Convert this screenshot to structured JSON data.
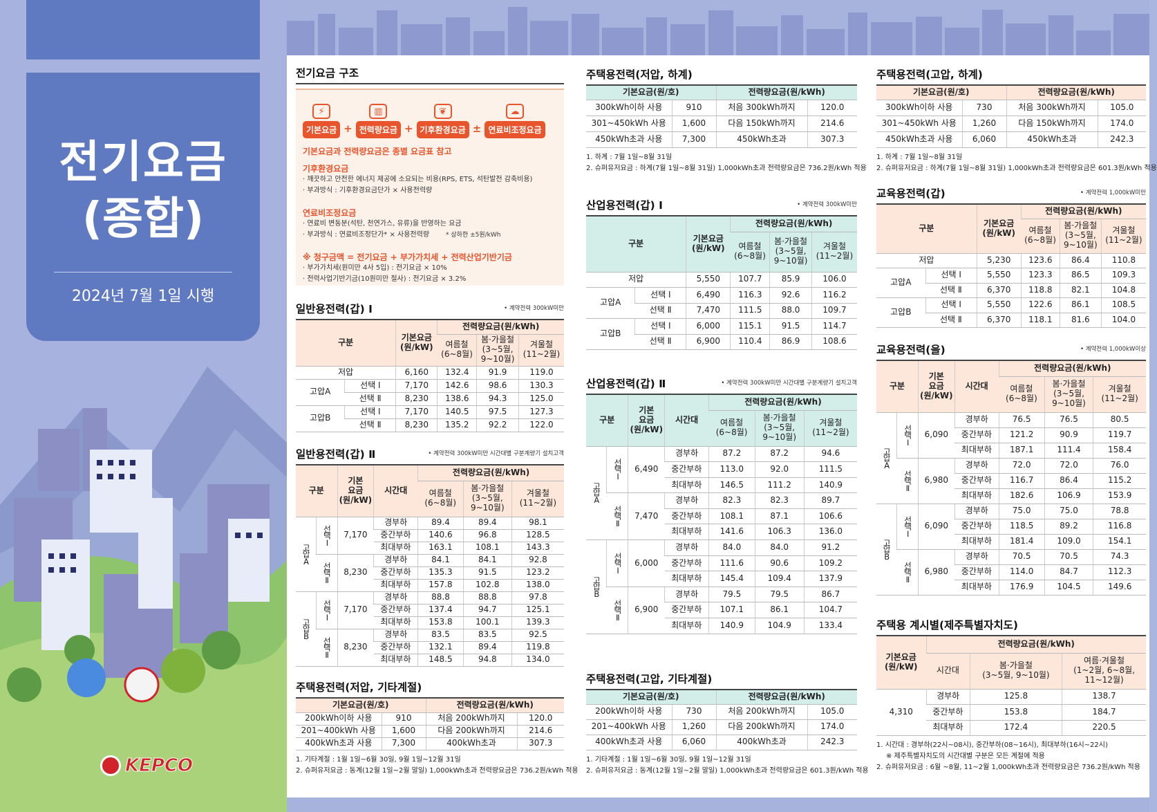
{
  "cover": {
    "title1": "전기요금",
    "title2": "(종합)",
    "date": "2024년 7월 1일 시행",
    "logo": "KEPCO"
  },
  "structure": {
    "title": "전기요금 구조",
    "chips": [
      "기본요금",
      "전력량요금",
      "기후환경요금",
      "연료비조정요금"
    ],
    "ops": [
      "+",
      "+",
      "±"
    ],
    "l1": "기본요금과 전력량요금은 종별 요금표 참고",
    "h2": "기후환경요금",
    "l2": "· 깨끗하고 안전한 에너지 제공에 소요되는 비용(RPS, ETS, 석탄발전 감축비용)",
    "l3": "· 부과방식 : 기후환경요금단가 × 사용전력량",
    "h3": "연료비조정요금",
    "l4": "· 연료비 변동분(석탄, 천연가스, 유류)을 반영하는 요금",
    "l5": "· 부과방식 : 연료비조정단가* × 사용전력량",
    "l5b": "* 상하한 ±5원/kWh",
    "h4": "※ 청구금액 = 전기요금 + 부가가치세 + 전력산업기반기금",
    "l6": "· 부가가치세(원미만 4사 5입) : 전기요금 × 10%",
    "l7": "· 전력사업기반기금(10원미만 절사) : 전기요금 × 3.2%"
  },
  "gen1": {
    "title": "일반용전력(갑) Ⅰ",
    "note": "• 계약전력 300kW미만",
    "h_div": "구분",
    "h_base": "기본요금\n(원/kW)",
    "h_energy": "전력량요금(원/kWh)",
    "h_s": "여름철\n(6~8월)",
    "h_sf": "봄·가을철\n(3~5월,\n9~10월)",
    "h_w": "겨울철\n(11~2월)",
    "g_low": "저압",
    "g_a": "고압A",
    "g_b": "고압B",
    "sel1": "선택 Ⅰ",
    "sel2": "선택 Ⅱ",
    "rows": [
      [
        "6,160",
        "132.4",
        "91.9",
        "119.0"
      ],
      [
        "7,170",
        "142.6",
        "98.6",
        "130.3"
      ],
      [
        "8,230",
        "138.6",
        "94.3",
        "125.0"
      ],
      [
        "7,170",
        "140.5",
        "97.5",
        "127.3"
      ],
      [
        "8,230",
        "135.2",
        "92.2",
        "122.0"
      ]
    ]
  },
  "gen2": {
    "title": "일반용전력(갑) Ⅱ",
    "note": "• 계약전력 300kW미만 시간대별 구분계량기 설치고객",
    "h_div": "구분",
    "h_base": "기본\n요금\n(원/kW)",
    "h_time": "시간대",
    "h_energy": "전력량요금(원/kWh)",
    "h_s": "여름철\n(6~8월)",
    "h_sf": "봄·가을철\n(3~5월,\n9~10월)",
    "h_w": "겨울철\n(11~2월)",
    "ga": "고압A",
    "gb": "고압B",
    "s1": "선택Ⅰ",
    "s2": "선택Ⅱ",
    "t": [
      "경부하",
      "중간부하",
      "최대부하"
    ],
    "bases": [
      "7,170",
      "8,230",
      "7,170",
      "8,230"
    ],
    "vals": [
      [
        "89.4",
        "89.4",
        "98.1"
      ],
      [
        "140.6",
        "96.8",
        "128.5"
      ],
      [
        "163.1",
        "108.1",
        "143.3"
      ],
      [
        "84.1",
        "84.1",
        "92.8"
      ],
      [
        "135.3",
        "91.5",
        "123.2"
      ],
      [
        "157.8",
        "102.8",
        "138.0"
      ],
      [
        "88.8",
        "88.8",
        "97.8"
      ],
      [
        "137.4",
        "94.7",
        "125.1"
      ],
      [
        "153.8",
        "100.1",
        "139.3"
      ],
      [
        "83.5",
        "83.5",
        "92.5"
      ],
      [
        "132.1",
        "89.4",
        "119.8"
      ],
      [
        "148.5",
        "94.8",
        "134.0"
      ]
    ]
  },
  "resLowOther": {
    "title": "주택용전력(저압, 기타계절)",
    "h_base": "기본요금(원/호)",
    "h_energy": "전력량요금(원/kWh)",
    "rows": [
      [
        "200kWh이하 사용",
        "910",
        "처음 200kWh까지",
        "120.0"
      ],
      [
        "201~400kWh 사용",
        "1,600",
        "다음 200kWh까지",
        "214.6"
      ],
      [
        "400kWh초과 사용",
        "7,300",
        "400kWh초과",
        "307.3"
      ]
    ],
    "n1": "1. 기타계절 : 1월 1일~6월 30일, 9월 1일~12월 31일",
    "n2": "2. 슈퍼유저요금 : 동계(12월 1일~2월 말일) 1,000kWh초과 전력량요금은 736.2원/kWh 적용"
  },
  "resLowSummer": {
    "title": "주택용전력(저압, 하계)",
    "h_base": "기본요금(원/호)",
    "h_energy": "전력량요금(원/kWh)",
    "rows": [
      [
        "300kWh이하 사용",
        "910",
        "처음 300kWh까지",
        "120.0"
      ],
      [
        "301~450kWh 사용",
        "1,600",
        "다음 150kWh까지",
        "214.6"
      ],
      [
        "450kWh초과 사용",
        "7,300",
        "450kWh초과",
        "307.3"
      ]
    ],
    "n1": "1. 하계 : 7월 1일~8월 31일",
    "n2": "2. 슈퍼유저요금 : 하계(7월 1일~8월 31일) 1,000kWh초과 전력량요금은 736.2원/kWh 적용"
  },
  "ind1": {
    "title": "산업용전력(갑) Ⅰ",
    "note": "• 계약전력 300kW미만",
    "h_div": "구분",
    "h_base": "기본요금\n(원/kW)",
    "h_energy": "전력량요금(원/kWh)",
    "h_s": "여름철\n(6~8월)",
    "h_sf": "봄·가을철\n(3~5월,\n9~10월)",
    "h_w": "겨울철\n(11~2월)",
    "g_low": "저압",
    "g_a": "고압A",
    "g_b": "고압B",
    "sel1": "선택 Ⅰ",
    "sel2": "선택 Ⅱ",
    "rows": [
      [
        "5,550",
        "107.7",
        "85.9",
        "106.0"
      ],
      [
        "6,490",
        "116.3",
        "92.6",
        "116.2"
      ],
      [
        "7,470",
        "111.5",
        "88.0",
        "109.7"
      ],
      [
        "6,000",
        "115.1",
        "91.5",
        "114.7"
      ],
      [
        "6,900",
        "110.4",
        "86.9",
        "108.6"
      ]
    ]
  },
  "ind2": {
    "title": "산업용전력(갑) Ⅱ",
    "note": "• 계약전력 300kW미만 시간대별 구분계량기 설치고객",
    "h_div": "구분",
    "h_base": "기본\n요금\n(원/kW)",
    "h_time": "시간대",
    "h_energy": "전력량요금(원/kWh)",
    "h_s": "여름철\n(6~8월)",
    "h_sf": "봄·가을철\n(3~5월,\n9~10월)",
    "h_w": "겨울철\n(11~2월)",
    "ga": "고압A",
    "gb": "고압B",
    "s1": "선택Ⅰ",
    "s2": "선택Ⅱ",
    "t": [
      "경부하",
      "중간부하",
      "최대부하"
    ],
    "bases": [
      "6,490",
      "7,470",
      "6,000",
      "6,900"
    ],
    "vals": [
      [
        "87.2",
        "87.2",
        "94.6"
      ],
      [
        "113.0",
        "92.0",
        "111.5"
      ],
      [
        "146.5",
        "111.2",
        "140.9"
      ],
      [
        "82.3",
        "82.3",
        "89.7"
      ],
      [
        "108.1",
        "87.1",
        "106.6"
      ],
      [
        "141.6",
        "106.3",
        "136.0"
      ],
      [
        "84.0",
        "84.0",
        "91.2"
      ],
      [
        "111.6",
        "90.6",
        "109.2"
      ],
      [
        "145.4",
        "109.4",
        "137.9"
      ],
      [
        "79.5",
        "79.5",
        "86.7"
      ],
      [
        "107.1",
        "86.1",
        "104.7"
      ],
      [
        "140.9",
        "104.9",
        "133.4"
      ]
    ]
  },
  "resHighOther": {
    "title": "주택용전력(고압, 기타계절)",
    "h_base": "기본요금(원/호)",
    "h_energy": "전력량요금(원/kWh)",
    "rows": [
      [
        "200kWh이하 사용",
        "730",
        "처음 200kWh까지",
        "105.0"
      ],
      [
        "201~400kWh 사용",
        "1,260",
        "다음 200kWh까지",
        "174.0"
      ],
      [
        "400kWh초과 사용",
        "6,060",
        "400kWh초과",
        "242.3"
      ]
    ],
    "n1": "1. 기타계절 : 1월 1일~6월 30일, 9월 1일~12월 31일",
    "n2": "2. 슈퍼유저요금 : 동계(12월 1일~2월 말일) 1,000kWh초과 전력량요금은 601.3원/kWh 적용"
  },
  "resHighSummer": {
    "title": "주택용전력(고압, 하계)",
    "h_base": "기본요금(원/호)",
    "h_energy": "전력량요금(원/kWh)",
    "rows": [
      [
        "300kWh이하 사용",
        "730",
        "처음 300kWh까지",
        "105.0"
      ],
      [
        "301~450kWh 사용",
        "1,260",
        "다음 150kWh까지",
        "174.0"
      ],
      [
        "450kWh초과 사용",
        "6,060",
        "450kWh초과",
        "242.3"
      ]
    ],
    "n1": "1. 하계 : 7월 1일~8월 31일",
    "n2": "2. 슈퍼유저요금 : 하계(7월 1일~8월 31일) 1,000kWh초과 전력량요금은 601.3원/kWh 적용"
  },
  "edu1": {
    "title": "교육용전력(갑)",
    "note": "• 계약전력 1,000kW미만",
    "h_div": "구분",
    "h_base": "기본요금\n(원/kW)",
    "h_energy": "전력량요금(원/kWh)",
    "h_s": "여름철\n(6~8월)",
    "h_sf": "봄·가을철\n(3~5월,\n9~10월)",
    "h_w": "겨울철\n(11~2월)",
    "g_low": "저압",
    "g_a": "고압A",
    "g_b": "고압B",
    "sel1": "선택 Ⅰ",
    "sel2": "선택 Ⅱ",
    "rows": [
      [
        "5,230",
        "123.6",
        "86.4",
        "110.8"
      ],
      [
        "5,550",
        "123.3",
        "86.5",
        "109.3"
      ],
      [
        "6,370",
        "118.8",
        "82.1",
        "104.8"
      ],
      [
        "5,550",
        "122.6",
        "86.1",
        "108.5"
      ],
      [
        "6,370",
        "118.1",
        "81.6",
        "104.0"
      ]
    ]
  },
  "edu2": {
    "title": "교육용전력(을)",
    "note": "• 계약전력 1,000kW이상",
    "h_div": "구분",
    "h_base": "기본\n요금\n(원/kW)",
    "h_time": "시간대",
    "h_energy": "전력량요금(원/kWh)",
    "h_s": "여름철\n(6~8월)",
    "h_sf": "봄·가을철\n(3~5월,\n9~10월)",
    "h_w": "겨울철\n(11~2월)",
    "ga": "고압A",
    "gb": "고압B",
    "s1": "선택Ⅰ",
    "s2": "선택Ⅱ",
    "t": [
      "경부하",
      "중간부하",
      "최대부하"
    ],
    "bases": [
      "6,090",
      "6,980",
      "6,090",
      "6,980"
    ],
    "vals": [
      [
        "76.5",
        "76.5",
        "80.5"
      ],
      [
        "121.2",
        "90.9",
        "119.7"
      ],
      [
        "187.1",
        "111.4",
        "158.4"
      ],
      [
        "72.0",
        "72.0",
        "76.0"
      ],
      [
        "116.7",
        "86.4",
        "115.2"
      ],
      [
        "182.6",
        "106.9",
        "153.9"
      ],
      [
        "75.0",
        "75.0",
        "78.8"
      ],
      [
        "118.5",
        "89.2",
        "116.8"
      ],
      [
        "181.4",
        "109.0",
        "154.1"
      ],
      [
        "70.5",
        "70.5",
        "74.3"
      ],
      [
        "114.0",
        "84.7",
        "112.3"
      ],
      [
        "176.9",
        "104.5",
        "149.6"
      ]
    ]
  },
  "jeju": {
    "title": "주택용 계시별(제주특별자치도)",
    "h_base": "기본요금\n(원/kW)",
    "h_energy": "전력량요금(원/kWh)",
    "h_time": "시간대",
    "h_sf": "봄·가을철\n(3~5월, 9~10월)",
    "h_sw": "여름·겨울철\n(1~2월, 6~8월,\n11~12월)",
    "base": "4,310",
    "rows": [
      [
        "경부하",
        "125.8",
        "138.7"
      ],
      [
        "중간부하",
        "153.8",
        "184.7"
      ],
      [
        "최대부하",
        "172.4",
        "220.5"
      ]
    ],
    "n1": "1. 시간대 : 경부하(22시~08시), 중간부하(08~16시), 최대부하(16시~22시)",
    "n1b": "※ 제주특별자치도의 시간대별 구분은 모든 계절에 적용",
    "n2": "2. 슈퍼유저요금 : 6월 ~8월, 11~2월 1,000kWh초과 전력량요금은 736.2원/kWh 적용"
  },
  "colors": {
    "cover": "#5f7ac0",
    "accent": "#e8552c",
    "peachHeader": "#fde7da",
    "mintHeader": "#d3ede9"
  }
}
